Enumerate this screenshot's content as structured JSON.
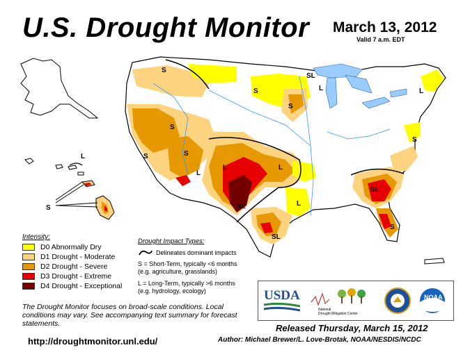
{
  "title": "U.S. Drought Monitor",
  "date": "March 13, 2012",
  "valid": "Valid 7 a.m. EDT",
  "intensity": {
    "header": "Intensity:",
    "items": [
      {
        "label": "D0 Abnormally Dry",
        "color": "#ffff00"
      },
      {
        "label": "D1 Drought - Moderate",
        "color": "#fcd37f"
      },
      {
        "label": "D2 Drought - Severe",
        "color": "#e69800"
      },
      {
        "label": "D3 Drought - Extreme",
        "color": "#e60000"
      },
      {
        "label": "D4 Drought - Exceptional",
        "color": "#730000"
      }
    ]
  },
  "impact": {
    "header": "Drought Impact Types:",
    "delineates": "Delineates dominant impacts",
    "short_term": "S = Short-Term, typically <6 months",
    "short_term_eg": "(e.g. agriculture, grasslands)",
    "long_term": "L = Long-Term, typically >6 months",
    "long_term_eg": "(e.g. hydrology, ecology)"
  },
  "disclaimer": "The Drought Monitor focuses on broad-scale conditions. Local conditions may vary. See accompanying text summary for forecast statements.",
  "url": "http://droughtmonitor.unl.edu/",
  "released": "Released Thursday, March 15, 2012",
  "author": "Author: Michael Brewer/L. Love-Brotak, NOAA/NESDIS/NCDC",
  "logos": {
    "usda": "USDA",
    "ndmc_line1": "National",
    "ndmc_line2": "Drought Mitigation Center",
    "noaa": "NOAA"
  },
  "map_labels": {
    "s": "S",
    "l": "L",
    "sl": "SL"
  }
}
